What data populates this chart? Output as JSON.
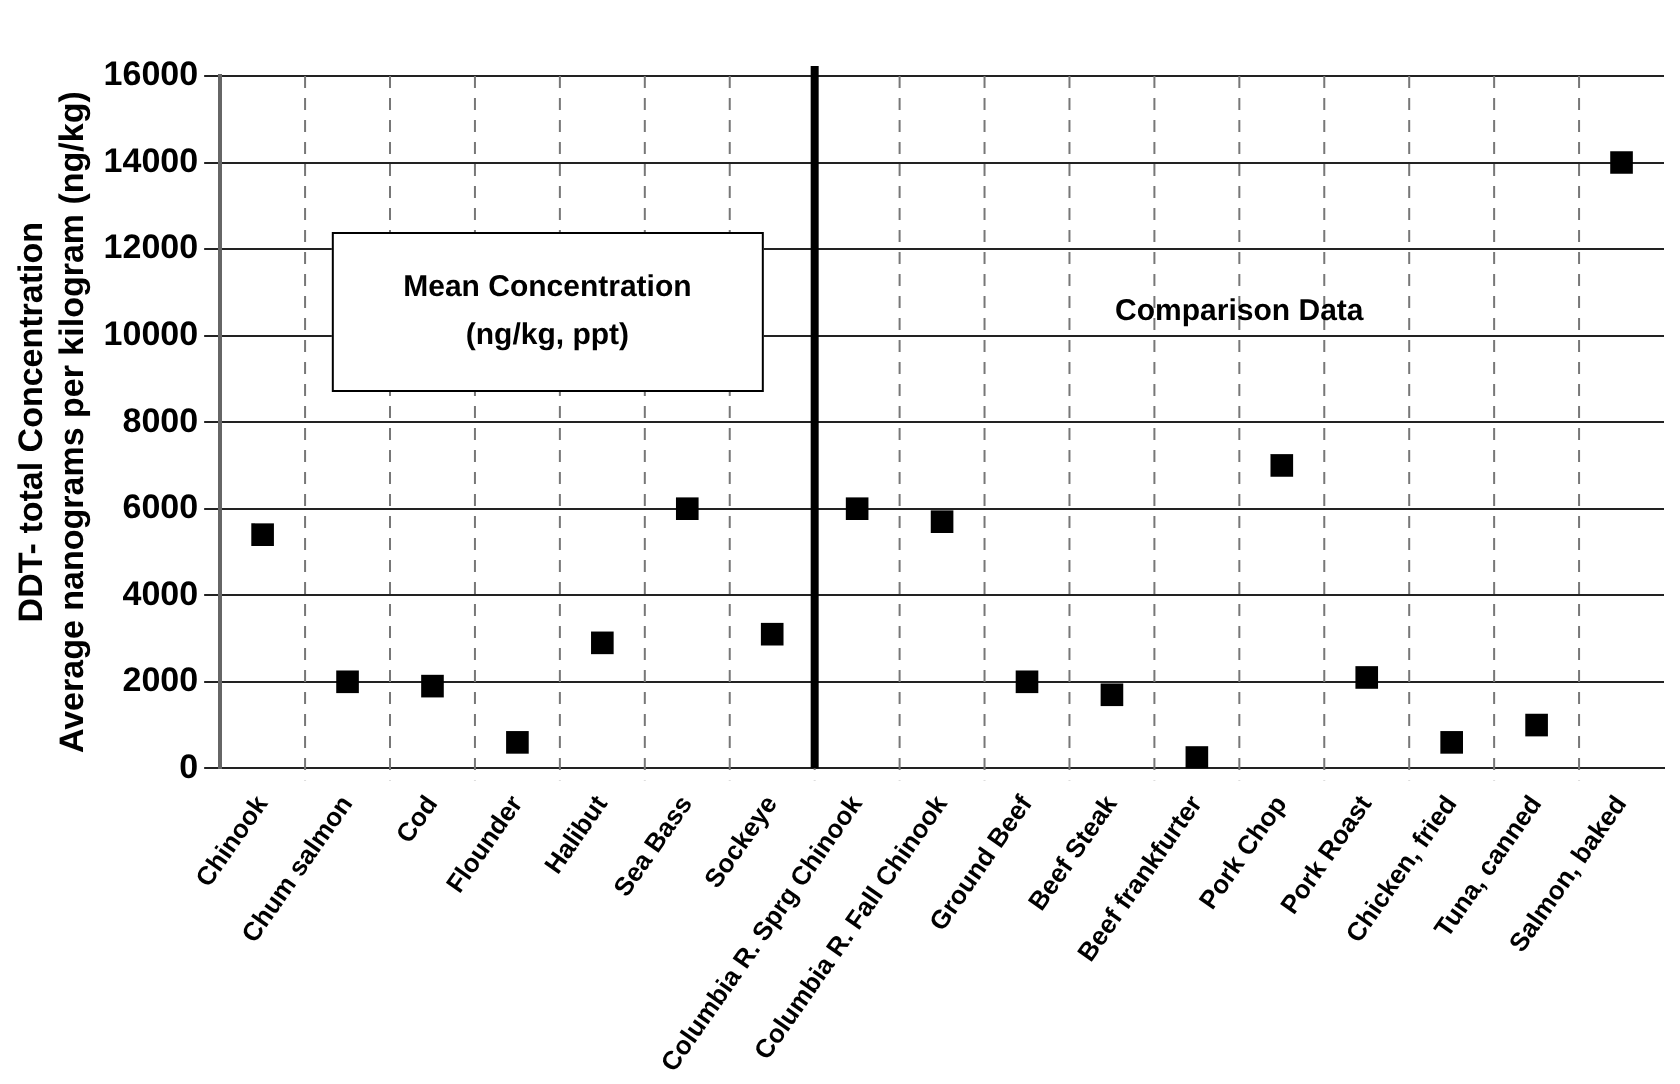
{
  "chart_data": {
    "type": "scatter",
    "ylabel": "DDT- total Concentration\nAverage nanograms per kilogram (ng/kg)",
    "categories": [
      "Chinook",
      "Chum salmon",
      "Cod",
      "Flounder",
      "Halibut",
      "Sea Bass",
      "Sockeye",
      "Columbia R. Sprg Chinook",
      "Columbia R. Fall Chinook",
      "Ground Beef",
      "Beef Steak",
      "Beef frankfurter",
      "Pork Chop",
      "Pork Roast",
      "Chicken, fried",
      "Tuna, canned",
      "Salmon, baked"
    ],
    "values": [
      5400,
      2000,
      1900,
      600,
      2900,
      6000,
      3100,
      6000,
      5700,
      2000,
      1700,
      250,
      7000,
      2100,
      600,
      1000,
      14000
    ],
    "color": "#000000",
    "marker": "square",
    "ylim": [
      0,
      16000
    ],
    "yticks": [
      0,
      2000,
      4000,
      6000,
      8000,
      10000,
      12000,
      14000,
      16000
    ],
    "grid": true,
    "legend": false,
    "ref_lines": [
      {
        "axis": "x",
        "value": "Columbia R. Sprg Chinook",
        "color": "#000000"
      }
    ],
    "annotations": [
      "Mean Concentration\n(ng/kg, ppt)",
      "Comparison Data"
    ]
  }
}
